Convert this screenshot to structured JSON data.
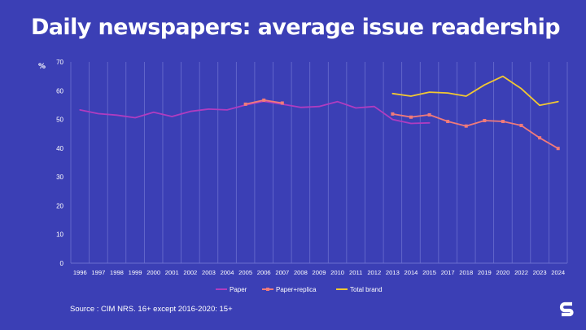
{
  "page": {
    "title": "Daily newspapers: average issue readership",
    "source": "Source : CIM NRS. 16+ except 2016-2020: 15+",
    "logo_icon": "s-logo"
  },
  "colors": {
    "background": "#3b3fb5",
    "paper": "#b03cc0",
    "paper_replica": "#f07a7a",
    "total_brand": "#f2c832",
    "grid": "#6b6fcf",
    "text": "#ffffff"
  },
  "chart_data": {
    "type": "line",
    "ylabel": "%",
    "xlabel": "",
    "ylim": [
      0,
      70
    ],
    "yticks": [
      0,
      10,
      20,
      30,
      40,
      50,
      60,
      70
    ],
    "grid": "vertical",
    "legend": "bottom",
    "categories": [
      "1996",
      "1997",
      "1998",
      "1999",
      "2000",
      "2001",
      "2002",
      "2003",
      "2004",
      "2005",
      "2006",
      "2007",
      "2008",
      "2009",
      "2010",
      "2011",
      "2012",
      "2013",
      "2014",
      "2015",
      "2017",
      "2018",
      "2019",
      "2020",
      "2022",
      "2023",
      "2024"
    ],
    "series": [
      {
        "name": "Paper",
        "color": "#b03cc0",
        "markers": false,
        "values": [
          53.3,
          52.0,
          51.5,
          50.6,
          52.5,
          51.0,
          52.8,
          53.6,
          53.3,
          55.0,
          56.3,
          55.3,
          54.2,
          54.5,
          56.2,
          54.0,
          54.5,
          50.0,
          48.6,
          48.8,
          null,
          null,
          null,
          null,
          null,
          null,
          null
        ]
      },
      {
        "name": "Paper+replica",
        "color": "#f07a7a",
        "markers": true,
        "values": [
          null,
          null,
          null,
          null,
          null,
          null,
          null,
          null,
          null,
          55.3,
          56.7,
          55.7,
          null,
          null,
          null,
          null,
          null,
          51.9,
          50.8,
          51.6,
          49.3,
          47.7,
          49.6,
          49.3,
          47.9,
          43.6,
          39.9
        ]
      },
      {
        "name": "Total brand",
        "color": "#f2c832",
        "markers": false,
        "values": [
          null,
          null,
          null,
          null,
          null,
          null,
          null,
          null,
          null,
          null,
          null,
          null,
          null,
          null,
          null,
          null,
          null,
          59.0,
          58.1,
          59.5,
          59.2,
          58.1,
          62.0,
          65.0,
          60.7,
          54.9,
          56.2
        ]
      }
    ]
  }
}
